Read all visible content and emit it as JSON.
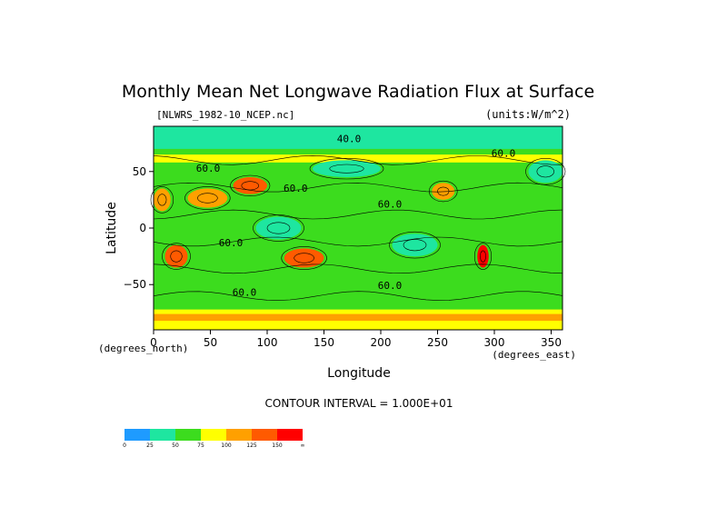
{
  "chart_data": {
    "type": "heatmap",
    "title": "Monthly Mean Net Longwave Radiation Flux at Surface",
    "subtitle_left": "[NLWRS_1982-10_NCEP.nc]",
    "subtitle_right": "(units:W/m^2)",
    "xlabel": "Longitude",
    "ylabel": "Latitude",
    "x_units_label": "(degrees_east)",
    "y_units_label": "(degrees_north)",
    "xlim": [
      0,
      360
    ],
    "ylim": [
      -90,
      90
    ],
    "x_ticks": [
      0,
      50,
      100,
      150,
      200,
      250,
      300,
      350
    ],
    "y_ticks": [
      50,
      0,
      -50
    ],
    "y_tick_labels": [
      "50",
      "0",
      "−50"
    ],
    "contour_interval_label": "CONTOUR INTERVAL = 1.000E+01",
    "contour_labels": [
      {
        "text": "40.0",
        "lon": 172,
        "lat": 76
      },
      {
        "text": "60.0",
        "lon": 48,
        "lat": 50
      },
      {
        "text": "60.0",
        "lon": 125,
        "lat": 32
      },
      {
        "text": "60.0",
        "lon": 208,
        "lat": 18
      },
      {
        "text": "60.0",
        "lon": 68,
        "lat": -16
      },
      {
        "text": "60.0",
        "lon": 208,
        "lat": -54
      },
      {
        "text": "60.0",
        "lon": 80,
        "lat": -60
      },
      {
        "text": "60.0",
        "lon": 308,
        "lat": 63
      }
    ],
    "colorbar": {
      "levels": [
        "0",
        "25",
        "50",
        "75",
        "100",
        "125",
        "150",
        "∞"
      ],
      "colors": [
        "#1e9bff",
        "#1ee6a0",
        "#3cdc1e",
        "#ffff00",
        "#ffa000",
        "#ff5a00",
        "#ff0000"
      ]
    },
    "regions": [
      {
        "lon": [
          0,
          360
        ],
        "lat": [
          -90,
          90
        ],
        "level": 2
      },
      {
        "lon": [
          0,
          360
        ],
        "lat": [
          70,
          90
        ],
        "level": 1
      },
      {
        "lon": [
          0,
          360
        ],
        "lat": [
          -90,
          -72
        ],
        "level": 3
      },
      {
        "lon": [
          0,
          360
        ],
        "lat": [
          -82,
          -76
        ],
        "level": 4
      },
      {
        "lon": [
          0,
          15
        ],
        "lat": [
          15,
          35
        ],
        "level": 4
      },
      {
        "lon": [
          30,
          65
        ],
        "lat": [
          18,
          35
        ],
        "level": 4
      },
      {
        "lon": [
          70,
          100
        ],
        "lat": [
          30,
          45
        ],
        "level": 5
      },
      {
        "lon": [
          10,
          30
        ],
        "lat": [
          -35,
          -15
        ],
        "level": 5
      },
      {
        "lon": [
          115,
          150
        ],
        "lat": [
          -35,
          -18
        ],
        "level": 5
      },
      {
        "lon": [
          245,
          265
        ],
        "lat": [
          25,
          40
        ],
        "level": 4
      },
      {
        "lon": [
          285,
          295
        ],
        "lat": [
          -35,
          -15
        ],
        "level": 6
      },
      {
        "lon": [
          0,
          360
        ],
        "lat": [
          58,
          65
        ],
        "level": 3
      },
      {
        "lon": [
          90,
          130
        ],
        "lat": [
          -10,
          10
        ],
        "level": 1
      },
      {
        "lon": [
          210,
          250
        ],
        "lat": [
          -25,
          -5
        ],
        "level": 1
      },
      {
        "lon": [
          140,
          200
        ],
        "lat": [
          45,
          60
        ],
        "level": 1
      },
      {
        "lon": [
          330,
          360
        ],
        "lat": [
          40,
          60
        ],
        "level": 1
      }
    ]
  }
}
